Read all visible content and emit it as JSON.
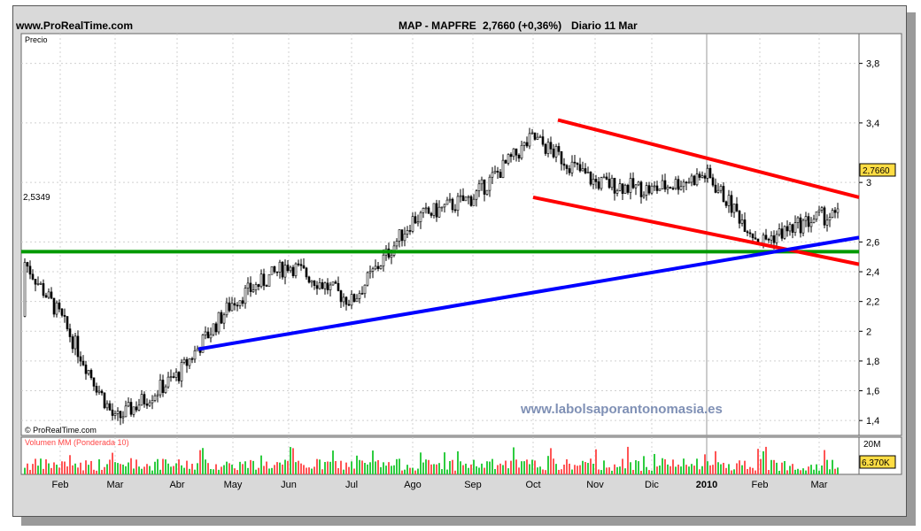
{
  "header": {
    "site": "www.ProRealTime.com",
    "instrument": "MAP - MAPFRE",
    "last": "2,7660 (+0,36%)",
    "period": "Diario  11 Mar"
  },
  "price_panel": {
    "label": "Precio",
    "watermark_credit": "© ProRealTime.com",
    "website_watermark": "www.labolsaporantonomasia.es",
    "current_price_tag": "2,7660",
    "level_tag": "2,5349"
  },
  "volume_panel": {
    "label": "Volumen MM (Ponderada 10)",
    "axis_top": "20M",
    "current_tag": "6.370K"
  },
  "colors": {
    "channel": "#ff0000",
    "support": "#009900",
    "trendline": "#0000ff",
    "volume_up": "#2ecc40",
    "volume_down": "#ff5555",
    "current_tag_bg": "#ffdd44"
  },
  "chart_data": {
    "type": "candlestick",
    "ylim": [
      1.3,
      4.0
    ],
    "y_ticks": [
      "3,8",
      "3,4",
      "3",
      "2,6",
      "2,4",
      "2,2",
      "2",
      "1,8",
      "1,6",
      "1,4"
    ],
    "x_ticks": [
      "Feb",
      "Mar",
      "Abr",
      "May",
      "Jun",
      "Jul",
      "Ago",
      "Sep",
      "Oct",
      "Nov",
      "Dic",
      "2010",
      "Feb",
      "Mar"
    ],
    "approx_closes": [
      {
        "month": "Feb",
        "price": 2.1
      },
      {
        "month": "Mar",
        "price": 1.4
      },
      {
        "month": "Abr",
        "price": 1.7
      },
      {
        "month": "May",
        "price": 2.2
      },
      {
        "month": "Jun",
        "price": 2.45
      },
      {
        "month": "Jul",
        "price": 2.2
      },
      {
        "month": "Ago",
        "price": 2.75
      },
      {
        "month": "Sep",
        "price": 2.9
      },
      {
        "month": "Oct",
        "price": 3.3
      },
      {
        "month": "Nov",
        "price": 3.0
      },
      {
        "month": "Dic",
        "price": 2.95
      },
      {
        "month": "2010",
        "price": 3.05
      },
      {
        "month": "Feb",
        "price": 2.6
      },
      {
        "month": "Mar",
        "price": 2.77
      }
    ],
    "last_price": 2.766,
    "horizontal_support": 2.5349,
    "trendlines": [
      {
        "name": "channel-upper",
        "color": "red",
        "from": {
          "month": "Oct",
          "price": 3.42
        },
        "to": {
          "month": "Mar",
          "price": 2.9
        }
      },
      {
        "name": "channel-lower",
        "color": "red",
        "from": {
          "month": "Oct",
          "price": 2.9
        },
        "to": {
          "month": "Mar",
          "price": 2.45
        }
      },
      {
        "name": "rising-support",
        "color": "blue",
        "from": {
          "month": "Abr",
          "price": 1.88
        },
        "to": {
          "month": "Mar",
          "price": 2.63
        }
      }
    ]
  }
}
